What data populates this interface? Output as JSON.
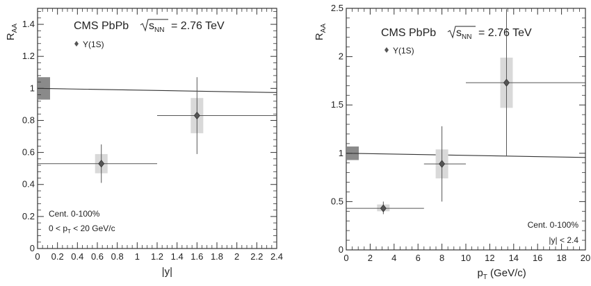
{
  "chart_data": [
    {
      "type": "scatter",
      "title": "CMS PbPb",
      "energy_label": "= 2.76 TeV",
      "sqrt_label": "s",
      "sqrt_sub": "NN",
      "legend_entry": "Υ(1S)",
      "xlabel": "|y|",
      "ylabel_main": "R",
      "ylabel_sub": "AA",
      "xlim": [
        0,
        2.4
      ],
      "ylim": [
        0,
        1.5
      ],
      "xticks": [
        "0",
        "0.2",
        "0.4",
        "0.6",
        "0.8",
        "1",
        "1.2",
        "1.4",
        "1.6",
        "1.8",
        "2",
        "2.2",
        "2.4"
      ],
      "yticks": [
        "0",
        "0.2",
        "0.4",
        "0.6",
        "0.8",
        "1",
        "1.2",
        "1.4"
      ],
      "reference_line": 1,
      "global_uncertainty": [
        0.93,
        1.07
      ],
      "points": [
        {
          "x": 0.64,
          "y": 0.53,
          "xlo": 0,
          "xhi": 1.2,
          "ylo": 0.41,
          "yhi": 0.65,
          "syslo": 0.47,
          "syshi": 0.59
        },
        {
          "x": 1.6,
          "y": 0.83,
          "xlo": 1.2,
          "xhi": 2.4,
          "ylo": 0.59,
          "yhi": 1.07,
          "syslo": 0.72,
          "syshi": 0.94
        }
      ],
      "annotation_cent": "Cent. 0-100%",
      "annotation_range": "0 < p",
      "annotation_range_sub": "T",
      "annotation_range_tail": " < 20 GeV/c"
    },
    {
      "type": "scatter",
      "title": "CMS PbPb",
      "energy_label": "= 2.76 TeV",
      "sqrt_label": "s",
      "sqrt_sub": "NN",
      "legend_entry": "Υ(1S)",
      "xlabel": "p",
      "xlabel_sub": "T",
      "xlabel_tail": " (GeV/c)",
      "ylabel_main": "R",
      "ylabel_sub": "AA",
      "xlim": [
        0,
        20
      ],
      "ylim": [
        0,
        2.5
      ],
      "xticks": [
        "0",
        "2",
        "4",
        "6",
        "8",
        "10",
        "12",
        "14",
        "16",
        "18",
        "20"
      ],
      "yticks": [
        "0",
        "0.5",
        "1",
        "1.5",
        "2",
        "2.5"
      ],
      "reference_line": 1,
      "global_uncertainty": [
        0.93,
        1.07
      ],
      "points": [
        {
          "x": 3.1,
          "y": 0.43,
          "xlo": 0,
          "xhi": 6.5,
          "ylo": 0.37,
          "yhi": 0.5,
          "syslo": 0.4,
          "syshi": 0.47
        },
        {
          "x": 8.0,
          "y": 0.89,
          "xlo": 6.5,
          "xhi": 10,
          "ylo": 0.5,
          "yhi": 1.28,
          "syslo": 0.74,
          "syshi": 1.04
        },
        {
          "x": 13.4,
          "y": 1.73,
          "xlo": 10,
          "xhi": 20,
          "ylo": 0.97,
          "yhi": 2.49,
          "syslo": 1.47,
          "syshi": 1.99
        }
      ],
      "annotation_cent": "Cent. 0-100%",
      "annotation_range": "|y| < 2.4"
    }
  ]
}
